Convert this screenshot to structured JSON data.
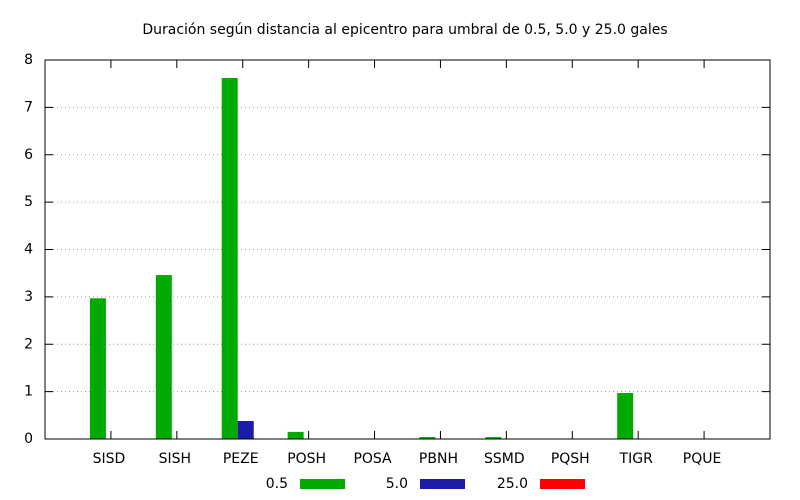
{
  "chart_data": {
    "type": "bar",
    "title": "Duración según distancia al epicentro para umbral de 0.5, 5.0 y 25.0 gales",
    "categories": [
      "SISD",
      "SISH",
      "PEZE",
      "POSH",
      "POSA",
      "PBNH",
      "SSMD",
      "PQSH",
      "TIGR",
      "PQUE"
    ],
    "series": [
      {
        "name": "0.5",
        "color": "#00aa00",
        "values": [
          2.97,
          3.46,
          7.62,
          0.15,
          0,
          0.04,
          0.04,
          0,
          0.97,
          0
        ]
      },
      {
        "name": "5.0",
        "color": "#1c1ca8",
        "values": [
          0,
          0,
          0.38,
          0,
          0,
          0,
          0,
          0,
          0,
          0
        ]
      },
      {
        "name": "25.0",
        "color": "#ff0000",
        "values": [
          0,
          0,
          0,
          0,
          0,
          0,
          0,
          0,
          0,
          0
        ]
      }
    ],
    "ylim": [
      0,
      8
    ],
    "yticks": [
      0,
      1,
      2,
      3,
      4,
      5,
      6,
      7,
      8
    ],
    "grid": true
  }
}
